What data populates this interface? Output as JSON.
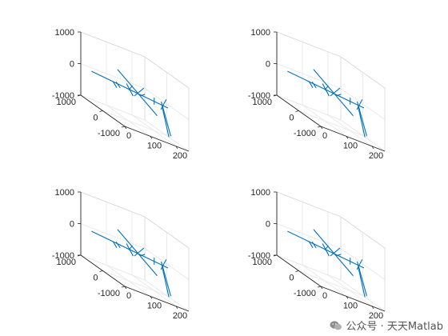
{
  "chart_data": [
    {
      "type": "line3d",
      "xlim": [
        0,
        250
      ],
      "ylim": [
        -1000,
        1000
      ],
      "zlim": [
        -1000,
        1000
      ],
      "x_ticks": [
        0,
        100,
        200
      ],
      "y_ticks": [
        -1000,
        0,
        1000
      ],
      "z_ticks": [
        -1000,
        0,
        1000
      ],
      "x_tick_labels": [
        "0",
        "100",
        "200"
      ],
      "y_tick_labels": [
        "-1000",
        "0",
        "1000"
      ],
      "z_tick_labels": [
        "-1000",
        "0",
        "1000"
      ],
      "grid": true,
      "color": "#0072BD",
      "segments": [
        [
          [
            0,
            500,
            0
          ],
          [
            210,
            -500,
            0
          ]
        ],
        [
          [
            38,
            -20,
            60
          ],
          [
            42,
            -140,
            -60
          ]
        ],
        [
          [
            58,
            60,
            60
          ],
          [
            62,
            -60,
            -40
          ]
        ],
        [
          [
            95,
            20,
            140
          ],
          [
            105,
            -150,
            -120
          ]
        ],
        [
          [
            120,
            200,
            -60
          ],
          [
            118,
            40,
            140
          ]
        ],
        [
          [
            110,
            600,
            350
          ],
          [
            160,
            -600,
            -350
          ]
        ],
        [
          [
            125,
            -400,
            300
          ],
          [
            150,
            300,
            -200
          ]
        ],
        [
          [
            140,
            -100,
            -30
          ],
          [
            160,
            -40,
            40
          ]
        ],
        [
          [
            175,
            -300,
            -100
          ],
          [
            175,
            -300,
            100
          ]
        ],
        [
          [
            180,
            -600,
            0
          ],
          [
            215,
            -500,
            -900
          ]
        ],
        [
          [
            190,
            -450,
            100
          ],
          [
            205,
            -700,
            -800
          ]
        ],
        [
          [
            200,
            -550,
            250
          ],
          [
            195,
            -380,
            -150
          ]
        ]
      ]
    },
    {
      "type": "line3d",
      "xlim": [
        0,
        250
      ],
      "ylim": [
        -1000,
        1000
      ],
      "zlim": [
        -1000,
        1000
      ],
      "x_ticks": [
        0,
        100,
        200
      ],
      "y_ticks": [
        -1000,
        0,
        1000
      ],
      "z_ticks": [
        -1000,
        0,
        1000
      ],
      "x_tick_labels": [
        "0",
        "100",
        "200"
      ],
      "y_tick_labels": [
        "-1000",
        "0",
        "1000"
      ],
      "z_tick_labels": [
        "-1000",
        "0",
        "1000"
      ],
      "grid": true,
      "color": "#0072BD",
      "segments": [
        [
          [
            0,
            500,
            0
          ],
          [
            210,
            -500,
            0
          ]
        ],
        [
          [
            38,
            -20,
            60
          ],
          [
            42,
            -140,
            -60
          ]
        ],
        [
          [
            58,
            60,
            60
          ],
          [
            62,
            -60,
            -40
          ]
        ],
        [
          [
            95,
            20,
            140
          ],
          [
            105,
            -150,
            -120
          ]
        ],
        [
          [
            120,
            200,
            -60
          ],
          [
            118,
            40,
            140
          ]
        ],
        [
          [
            110,
            600,
            350
          ],
          [
            160,
            -600,
            -350
          ]
        ],
        [
          [
            125,
            -400,
            300
          ],
          [
            150,
            300,
            -200
          ]
        ],
        [
          [
            140,
            -100,
            -30
          ],
          [
            160,
            -40,
            40
          ]
        ],
        [
          [
            175,
            -300,
            -100
          ],
          [
            175,
            -300,
            100
          ]
        ],
        [
          [
            180,
            -600,
            0
          ],
          [
            215,
            -500,
            -900
          ]
        ],
        [
          [
            190,
            -450,
            100
          ],
          [
            205,
            -700,
            -800
          ]
        ],
        [
          [
            200,
            -550,
            250
          ],
          [
            195,
            -380,
            -150
          ]
        ]
      ]
    },
    {
      "type": "line3d",
      "xlim": [
        0,
        250
      ],
      "ylim": [
        -1000,
        1000
      ],
      "zlim": [
        -1000,
        1000
      ],
      "x_ticks": [
        0,
        100,
        200
      ],
      "y_ticks": [
        -1000,
        0,
        1000
      ],
      "z_ticks": [
        -1000,
        0,
        1000
      ],
      "x_tick_labels": [
        "0",
        "100",
        "200"
      ],
      "y_tick_labels": [
        "-1000",
        "0",
        "1000"
      ],
      "z_tick_labels": [
        "-1000",
        "0",
        "1000"
      ],
      "grid": true,
      "color": "#0072BD",
      "segments": [
        [
          [
            0,
            500,
            0
          ],
          [
            210,
            -500,
            0
          ]
        ],
        [
          [
            38,
            -20,
            60
          ],
          [
            42,
            -140,
            -60
          ]
        ],
        [
          [
            58,
            60,
            60
          ],
          [
            62,
            -60,
            -40
          ]
        ],
        [
          [
            95,
            20,
            140
          ],
          [
            105,
            -150,
            -120
          ]
        ],
        [
          [
            120,
            200,
            -60
          ],
          [
            118,
            40,
            140
          ]
        ],
        [
          [
            110,
            600,
            350
          ],
          [
            160,
            -600,
            -350
          ]
        ],
        [
          [
            125,
            -400,
            300
          ],
          [
            150,
            300,
            -200
          ]
        ],
        [
          [
            140,
            -100,
            -30
          ],
          [
            160,
            -40,
            40
          ]
        ],
        [
          [
            175,
            -300,
            -100
          ],
          [
            175,
            -300,
            100
          ]
        ],
        [
          [
            180,
            -600,
            0
          ],
          [
            215,
            -500,
            -900
          ]
        ],
        [
          [
            190,
            -450,
            100
          ],
          [
            205,
            -700,
            -800
          ]
        ],
        [
          [
            200,
            -550,
            250
          ],
          [
            195,
            -380,
            -150
          ]
        ]
      ]
    },
    {
      "type": "line3d",
      "xlim": [
        0,
        250
      ],
      "ylim": [
        -1000,
        1000
      ],
      "zlim": [
        -1000,
        1000
      ],
      "x_ticks": [
        0,
        100,
        200
      ],
      "y_ticks": [
        -1000,
        0,
        1000
      ],
      "z_ticks": [
        -1000,
        0,
        1000
      ],
      "x_tick_labels": [
        "0",
        "100",
        "200"
      ],
      "y_tick_labels": [
        "-1000",
        "0",
        "1000"
      ],
      "z_tick_labels": [
        "-1000",
        "0",
        "1000"
      ],
      "grid": true,
      "color": "#0072BD",
      "segments": [
        [
          [
            0,
            500,
            0
          ],
          [
            210,
            -500,
            0
          ]
        ],
        [
          [
            38,
            -20,
            60
          ],
          [
            42,
            -140,
            -60
          ]
        ],
        [
          [
            58,
            60,
            60
          ],
          [
            62,
            -60,
            -40
          ]
        ],
        [
          [
            95,
            20,
            140
          ],
          [
            105,
            -150,
            -120
          ]
        ],
        [
          [
            120,
            200,
            -60
          ],
          [
            118,
            40,
            140
          ]
        ],
        [
          [
            110,
            600,
            350
          ],
          [
            160,
            -600,
            -350
          ]
        ],
        [
          [
            125,
            -400,
            300
          ],
          [
            150,
            300,
            -200
          ]
        ],
        [
          [
            140,
            -100,
            -30
          ],
          [
            160,
            -40,
            40
          ]
        ],
        [
          [
            175,
            -300,
            -100
          ],
          [
            175,
            -300,
            100
          ]
        ],
        [
          [
            180,
            -600,
            0
          ],
          [
            215,
            -500,
            -900
          ]
        ],
        [
          [
            190,
            -450,
            100
          ],
          [
            205,
            -700,
            -800
          ]
        ],
        [
          [
            200,
            -550,
            250
          ],
          [
            195,
            -380,
            -150
          ]
        ]
      ]
    }
  ],
  "watermark": {
    "text": "公众号 · 天天Matlab",
    "icon": "wechat-logo-icon"
  }
}
